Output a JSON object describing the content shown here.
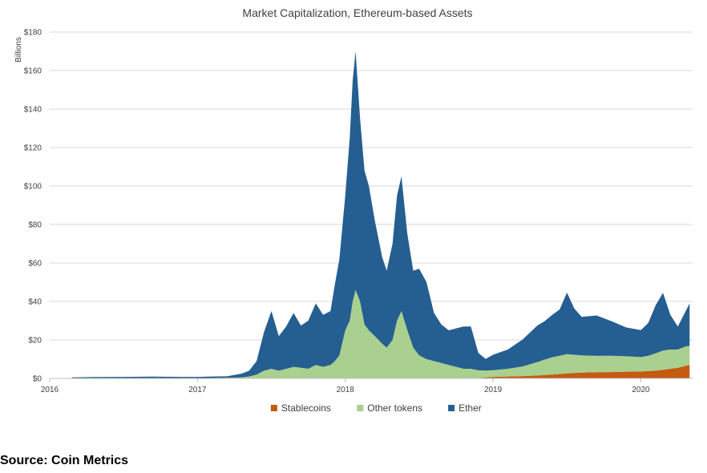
{
  "chart_data": {
    "type": "area",
    "stacked": true,
    "title": "Market Capitalization, Ethereum-based Assets",
    "ylabel": "Billions",
    "xlabel": "",
    "ylim": [
      0,
      180
    ],
    "xlim": [
      2016,
      2020.35
    ],
    "grid": true,
    "legend_position": "bottom",
    "y_ticks": [
      "$0",
      "$20",
      "$40",
      "$60",
      "$80",
      "$100",
      "$120",
      "$140",
      "$160",
      "$180"
    ],
    "x_ticks": [
      "2016",
      "2017",
      "2018",
      "2019",
      "2020"
    ],
    "x": [
      2016.15,
      2016.3,
      2016.5,
      2016.7,
      2016.9,
      2017.0,
      2017.1,
      2017.2,
      2017.3,
      2017.35,
      2017.4,
      2017.45,
      2017.5,
      2017.55,
      2017.6,
      2017.65,
      2017.7,
      2017.75,
      2017.8,
      2017.85,
      2017.9,
      2017.93,
      2017.96,
      2018.0,
      2018.03,
      2018.05,
      2018.07,
      2018.1,
      2018.13,
      2018.16,
      2018.2,
      2018.25,
      2018.28,
      2018.32,
      2018.35,
      2018.38,
      2018.42,
      2018.46,
      2018.5,
      2018.55,
      2018.6,
      2018.65,
      2018.7,
      2018.75,
      2018.8,
      2018.85,
      2018.9,
      2018.95,
      2019.0,
      2019.1,
      2019.2,
      2019.3,
      2019.35,
      2019.4,
      2019.45,
      2019.5,
      2019.55,
      2019.6,
      2019.7,
      2019.8,
      2019.9,
      2020.0,
      2020.05,
      2020.1,
      2020.15,
      2020.2,
      2020.25,
      2020.3,
      2020.33
    ],
    "series": [
      {
        "name": "Stablecoins",
        "color": "#c55a11",
        "values": [
          0,
          0,
          0,
          0,
          0,
          0,
          0,
          0,
          0,
          0,
          0,
          0,
          0,
          0,
          0,
          0,
          0,
          0,
          0,
          0,
          0,
          0,
          0,
          0,
          0,
          0,
          0,
          0,
          0,
          0,
          0,
          0,
          0,
          0,
          0,
          0,
          0,
          0,
          0,
          0,
          0,
          0,
          0,
          0,
          0,
          0,
          0.2,
          0.6,
          0.8,
          1.0,
          1.2,
          1.5,
          1.8,
          2.0,
          2.3,
          2.6,
          2.8,
          3.0,
          3.2,
          3.3,
          3.5,
          3.6,
          3.8,
          4.0,
          4.5,
          5.0,
          5.5,
          6.5,
          7.0
        ]
      },
      {
        "name": "Other tokens",
        "color": "#a9d08e",
        "values": [
          0,
          0,
          0,
          0,
          0,
          0,
          0.2,
          0.3,
          0.5,
          1.0,
          2.0,
          4.0,
          5.0,
          4.0,
          5.0,
          6.0,
          5.5,
          5.0,
          7.0,
          6.0,
          7.0,
          9.0,
          12.0,
          25.0,
          30.0,
          40.0,
          46.0,
          40.0,
          28.0,
          25.0,
          22.0,
          18.0,
          16.0,
          20.0,
          30.0,
          35.0,
          25.0,
          16.0,
          12.0,
          10.0,
          9.0,
          8.0,
          7.0,
          6.0,
          5.0,
          5.0,
          4.0,
          3.5,
          3.5,
          4.0,
          5.0,
          7.0,
          8.0,
          9.0,
          9.5,
          10.0,
          9.5,
          9.0,
          8.5,
          8.5,
          8.0,
          7.5,
          8.0,
          9.0,
          10.0,
          10.0,
          9.5,
          10.0,
          10.0
        ]
      },
      {
        "name": "Ether",
        "color": "#255e91",
        "values": [
          0.5,
          0.7,
          0.8,
          0.9,
          0.8,
          0.8,
          0.8,
          0.8,
          2.0,
          3.0,
          7.0,
          20.0,
          30.0,
          18.0,
          22.0,
          28.0,
          22.0,
          25.0,
          32.0,
          27.0,
          28.0,
          40.0,
          50.0,
          70.0,
          95.0,
          115.0,
          124.0,
          95.0,
          80.0,
          75.0,
          60.0,
          45.0,
          40.0,
          50.0,
          65.0,
          70.0,
          50.0,
          40.0,
          45.0,
          40.0,
          25.0,
          20.0,
          18.0,
          20.0,
          22.0,
          22.0,
          9.0,
          6.0,
          8.0,
          10.0,
          14.0,
          19.0,
          20.0,
          22.0,
          24.0,
          32.0,
          24.0,
          20.0,
          21.0,
          18.0,
          15.0,
          14.0,
          17.0,
          25.0,
          30.0,
          18.0,
          12.0,
          18.0,
          22.0
        ]
      }
    ]
  },
  "source": "Source: Coin Metrics"
}
